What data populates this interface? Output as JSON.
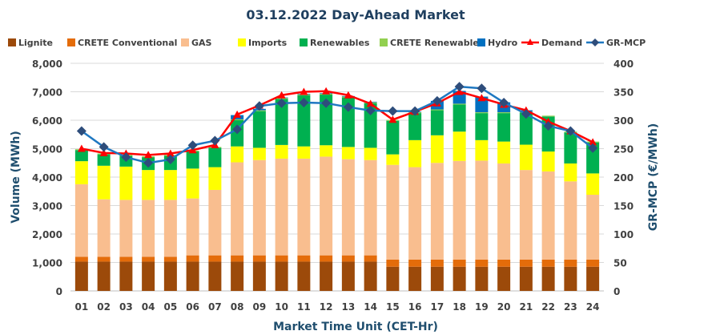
{
  "chart_data": {
    "type": "bar",
    "title": "03.12.2022  Day-Ahead Market",
    "xlabel": "Market Time Unit (CET-Hr)",
    "ylabel": "Volume (MWh)",
    "y2label": "GR-MCP (€/MWh)",
    "ylim": [
      0,
      8000
    ],
    "y2lim": [
      0,
      400
    ],
    "yticks": [
      "0",
      "1,000",
      "2,000",
      "3,000",
      "4,000",
      "5,000",
      "6,000",
      "7,000",
      "8,000"
    ],
    "y2ticks": [
      "0",
      "50",
      "100",
      "150",
      "200",
      "250",
      "300",
      "350",
      "400"
    ],
    "grid": true,
    "legend_position": "top",
    "categories": [
      "01",
      "02",
      "03",
      "04",
      "05",
      "06",
      "07",
      "08",
      "09",
      "10",
      "11",
      "12",
      "13",
      "14",
      "15",
      "16",
      "17",
      "18",
      "19",
      "20",
      "21",
      "22",
      "23",
      "24"
    ],
    "series": [
      {
        "name": "Lignite",
        "kind": "bar",
        "color": "#9C4A0A",
        "values": [
          1030,
          1030,
          1030,
          1030,
          1030,
          1030,
          1030,
          1030,
          1030,
          1030,
          1030,
          1030,
          1030,
          1030,
          850,
          850,
          850,
          850,
          850,
          850,
          850,
          850,
          850,
          850
        ]
      },
      {
        "name": "CRETE Conventional",
        "kind": "bar",
        "color": "#E46C0A",
        "values": [
          170,
          170,
          170,
          170,
          170,
          220,
          220,
          220,
          220,
          220,
          220,
          220,
          220,
          220,
          250,
          250,
          250,
          250,
          250,
          250,
          250,
          250,
          250,
          250
        ]
      },
      {
        "name": "GAS",
        "kind": "bar",
        "color": "#F9BE8F",
        "values": [
          2550,
          2020,
          2000,
          2000,
          2000,
          2000,
          2300,
          3270,
          3350,
          3400,
          3400,
          3470,
          3380,
          3350,
          3330,
          3250,
          3400,
          3470,
          3480,
          3380,
          3150,
          3100,
          2750,
          2280
        ]
      },
      {
        "name": "Imports",
        "kind": "bar",
        "color": "#FFFF00",
        "values": [
          810,
          1180,
          1170,
          1050,
          1050,
          1050,
          800,
          560,
          430,
          480,
          430,
          400,
          430,
          430,
          370,
          950,
          970,
          1030,
          720,
          770,
          890,
          700,
          630,
          750
        ]
      },
      {
        "name": "Renewables",
        "kind": "bar",
        "color": "#00B050",
        "values": [
          390,
          400,
          380,
          450,
          500,
          600,
          680,
          920,
          1290,
          1620,
          1800,
          1780,
          1740,
          1570,
          1180,
          950,
          880,
          950,
          950,
          1000,
          1130,
          1230,
          1090,
          1090
        ]
      },
      {
        "name": "CRETE Renewables",
        "kind": "bar",
        "color": "#92D050",
        "values": [
          30,
          30,
          30,
          30,
          30,
          30,
          30,
          30,
          30,
          30,
          30,
          30,
          30,
          30,
          30,
          30,
          30,
          30,
          30,
          30,
          30,
          30,
          30,
          30
        ]
      },
      {
        "name": "Hydro",
        "kind": "bar",
        "color": "#0070C0",
        "values": [
          0,
          0,
          0,
          0,
          0,
          0,
          0,
          150,
          50,
          20,
          20,
          20,
          20,
          20,
          0,
          20,
          300,
          450,
          550,
          350,
          50,
          0,
          0,
          0
        ]
      },
      {
        "name": "Demand",
        "kind": "line",
        "axis": "left",
        "color": "#FF0000",
        "values": [
          5000,
          4850,
          4830,
          4780,
          4830,
          4950,
          5130,
          6200,
          6520,
          6880,
          7000,
          7020,
          6880,
          6580,
          6020,
          6300,
          6600,
          7000,
          6780,
          6550,
          6350,
          5950,
          5620,
          5230
        ]
      },
      {
        "name": "GR-MCP",
        "kind": "line",
        "axis": "right",
        "color": "#1F78C1",
        "values": [
          281,
          253,
          235,
          225,
          231,
          256,
          264,
          284,
          325,
          330,
          331,
          330,
          323,
          317,
          316,
          316,
          334,
          359,
          356,
          331,
          311,
          290,
          281,
          251
        ]
      }
    ]
  }
}
